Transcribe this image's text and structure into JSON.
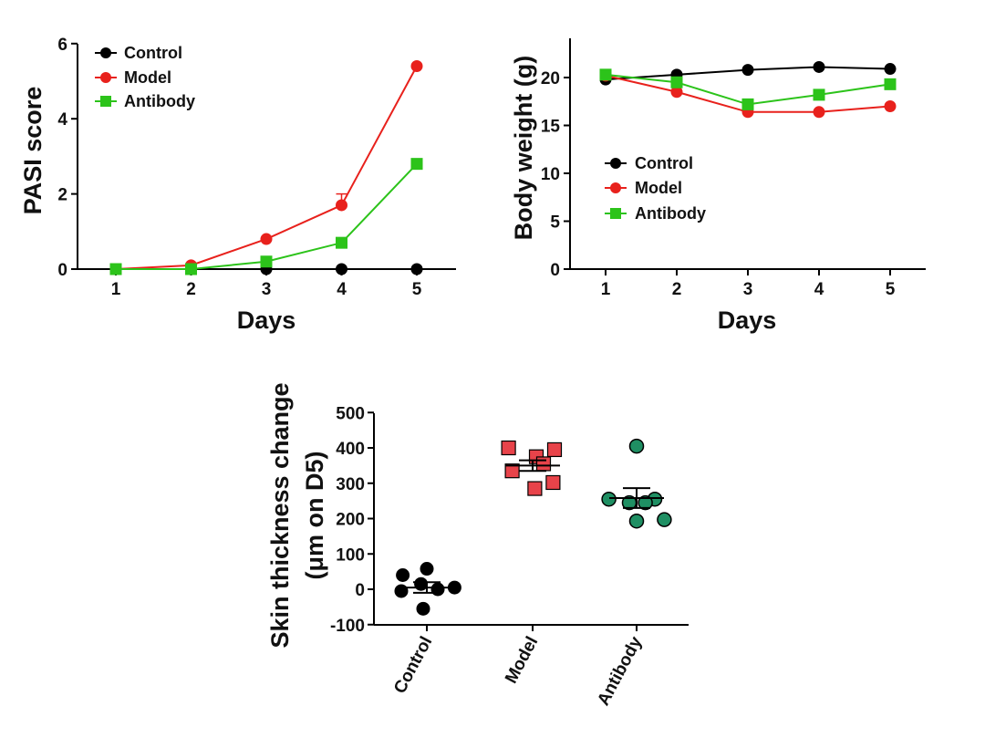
{
  "colors": {
    "control": "#000000",
    "model": "#e8211c",
    "antibody": "#2cc31a",
    "antibody_dot": "#1f8f63",
    "model_square": "#e8434a"
  },
  "chart_data": [
    {
      "id": "pasi",
      "type": "line",
      "xlabel": "Days",
      "ylabel": "PASI score",
      "x": [
        1,
        2,
        3,
        4,
        5
      ],
      "xticks": [
        "1",
        "2",
        "3",
        "4",
        "5"
      ],
      "yticks": [
        "0",
        "2",
        "4",
        "6"
      ],
      "ylim": [
        0,
        6
      ],
      "legend_position": "top-left",
      "series": [
        {
          "name": "Control",
          "marker": "circle",
          "values": [
            0,
            0,
            0,
            0,
            0
          ]
        },
        {
          "name": "Model",
          "marker": "circle",
          "values": [
            0,
            0.1,
            0.8,
            1.7,
            5.4
          ],
          "errors": [
            0,
            0,
            0,
            0.3,
            0
          ]
        },
        {
          "name": "Antibody",
          "marker": "square",
          "values": [
            0,
            0,
            0.2,
            0.7,
            2.8
          ]
        }
      ]
    },
    {
      "id": "weight",
      "type": "line",
      "xlabel": "Days",
      "ylabel": "Body weight (g)",
      "x": [
        1,
        2,
        3,
        4,
        5
      ],
      "xticks": [
        "1",
        "2",
        "3",
        "4",
        "5"
      ],
      "yticks": [
        "0",
        "5",
        "10",
        "15",
        "20"
      ],
      "ylim": [
        0,
        24
      ],
      "legend_position": "middle-left",
      "series": [
        {
          "name": "Control",
          "marker": "circle",
          "values": [
            19.8,
            20.3,
            20.8,
            21.1,
            20.9
          ]
        },
        {
          "name": "Model",
          "marker": "circle",
          "values": [
            20.2,
            18.5,
            16.4,
            16.4,
            17.0
          ]
        },
        {
          "name": "Antibody",
          "marker": "square",
          "values": [
            20.3,
            19.5,
            17.2,
            18.2,
            19.3
          ]
        }
      ]
    },
    {
      "id": "skin",
      "type": "scatter",
      "ylabel_lines": [
        "Skin thickness change",
        "(μm on D5)"
      ],
      "categories": [
        "Control",
        "Model",
        "Antibody"
      ],
      "yticks": [
        "-100",
        "0",
        "100",
        "200",
        "300",
        "400",
        "500"
      ],
      "ylim": [
        -100,
        500
      ],
      "groups": [
        {
          "name": "Control",
          "marker": "circle",
          "mean": 5,
          "sem": 15,
          "points": [
            [
              -0.33,
              40
            ],
            [
              0.0,
              58
            ],
            [
              -0.08,
              15
            ],
            [
              0.15,
              0
            ],
            [
              0.38,
              5
            ],
            [
              -0.35,
              -5
            ],
            [
              -0.05,
              -55
            ]
          ]
        },
        {
          "name": "Model",
          "marker": "square",
          "mean": 350,
          "sem": 15,
          "points": [
            [
              -0.33,
              400
            ],
            [
              0.05,
              375
            ],
            [
              0.3,
              395
            ],
            [
              -0.28,
              335
            ],
            [
              0.15,
              355
            ],
            [
              0.03,
              285
            ],
            [
              0.28,
              302
            ]
          ]
        },
        {
          "name": "Antibody",
          "marker": "circle",
          "mean": 258,
          "sem": 28,
          "points": [
            [
              0.0,
              405
            ],
            [
              -0.38,
              255
            ],
            [
              -0.1,
              245
            ],
            [
              0.25,
              255
            ],
            [
              0.12,
              245
            ],
            [
              0.0,
              193
            ],
            [
              0.38,
              197
            ]
          ]
        }
      ]
    }
  ]
}
